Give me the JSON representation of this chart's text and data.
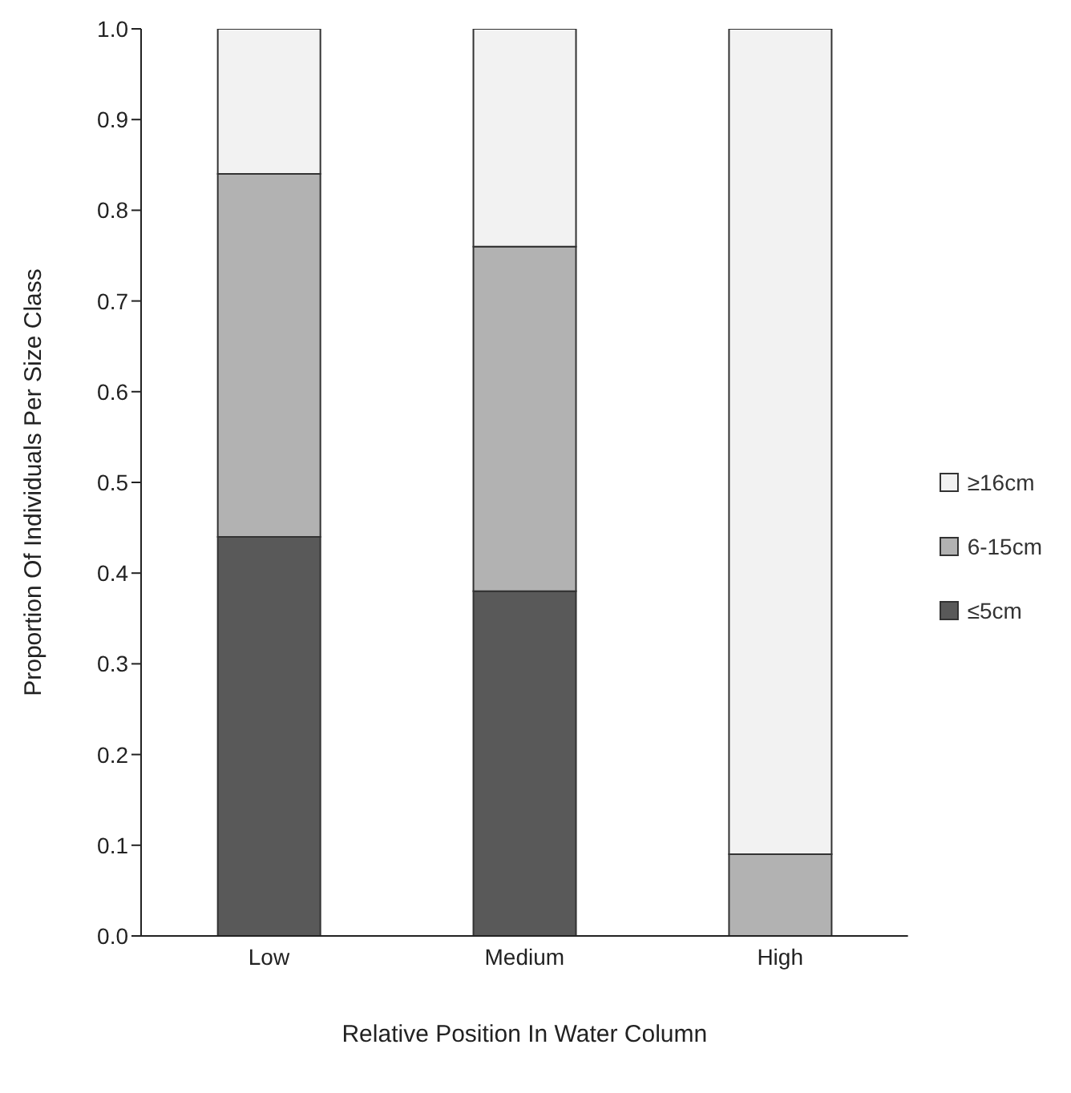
{
  "chart_data": {
    "type": "bar",
    "stacked": true,
    "xlabel": "Relative Position In Water Column",
    "ylabel": "Proportion Of Individuals Per Size Class",
    "categories": [
      "Low",
      "Medium",
      "High"
    ],
    "series": [
      {
        "name": "≤5cm",
        "color": "#595959",
        "values": [
          0.44,
          0.38,
          0
        ]
      },
      {
        "name": "6-15cm",
        "color": "#b2b2b2",
        "values": [
          0.4,
          0.38,
          0.09
        ]
      },
      {
        "name": "≥16cm",
        "color": "#f2f2f2",
        "values": [
          0.16,
          0.24,
          0.91
        ]
      }
    ],
    "ylim": [
      0,
      1
    ],
    "yticks": [
      {
        "value": 0,
        "label": "0.0"
      },
      {
        "value": 0.1,
        "label": "0.1"
      },
      {
        "value": 0.2,
        "label": "0.2"
      },
      {
        "value": 0.3,
        "label": "0.3"
      },
      {
        "value": 0.4,
        "label": "0.4"
      },
      {
        "value": 0.5,
        "label": "0.5"
      },
      {
        "value": 0.6,
        "label": "0.6"
      },
      {
        "value": 0.7,
        "label": "0.7"
      },
      {
        "value": 0.8,
        "label": "0.8"
      },
      {
        "value": 0.9,
        "label": "0.9"
      },
      {
        "value": 1,
        "label": "1.0"
      }
    ],
    "grid": false,
    "legend": "right"
  }
}
